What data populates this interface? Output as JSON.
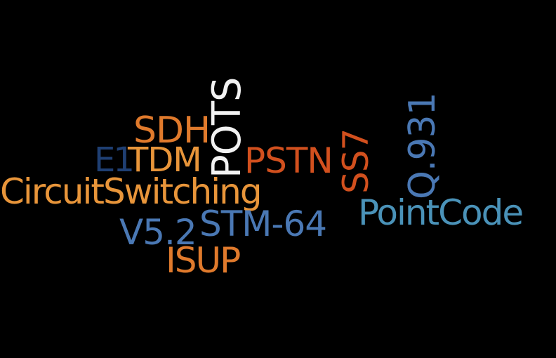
{
  "colors": {
    "background": "#000000",
    "orange": "#e07a2c",
    "light_orange": "#e8953a",
    "red_orange": "#d2501e",
    "white": "#f2f2f2",
    "navy": "#1f3f73",
    "blue": "#4a78b4",
    "teal": "#4a92b8"
  },
  "words": {
    "sdh": "SDH",
    "e1": "E1",
    "tdm": "TDM",
    "pots": "POTS",
    "pstn": "PSTN",
    "ss7": "SS7",
    "q931": "Q.931",
    "circuit_switching": "CircuitSwitching",
    "point_code": "PointCode",
    "v52": "V5.2",
    "stm64": "STM-64",
    "isup": "ISUP"
  }
}
